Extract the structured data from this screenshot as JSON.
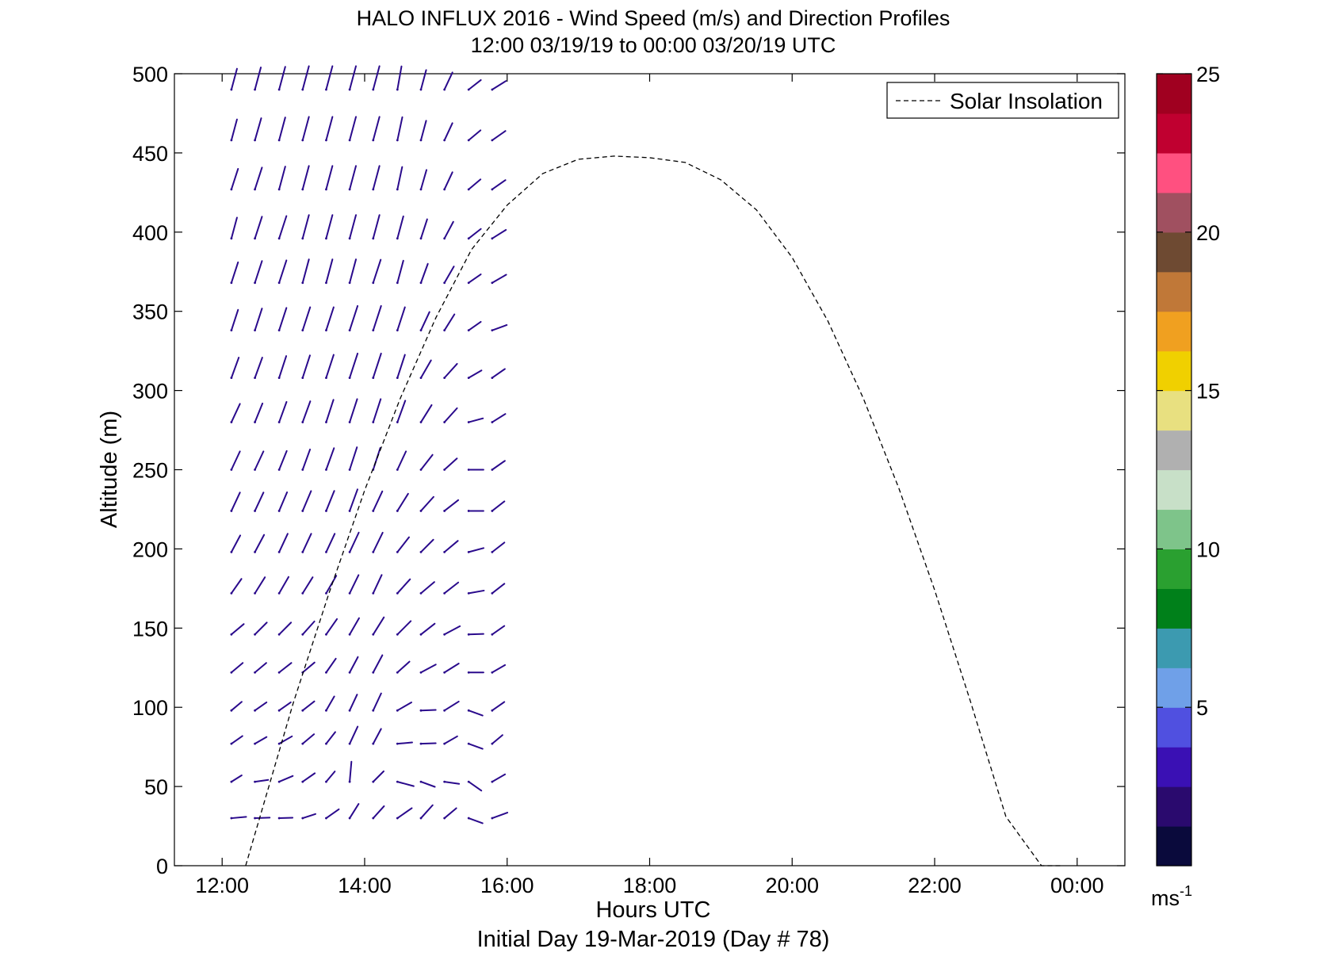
{
  "chart_data": {
    "type": "wind_barb_profile",
    "title": "HALO INFLUX 2016 - Wind Speed (m/s) and Direction Profiles",
    "subtitle": "12:00 03/19/19 to 00:00 03/20/19  UTC",
    "xlabel": "Hours UTC",
    "xlabel2": "Initial Day 19-Mar-2019 (Day # 78)",
    "ylabel": "Altitude (m)",
    "x_range_hours": [
      11.33,
      24.67
    ],
    "ylim": [
      0,
      500
    ],
    "x_ticks": [
      {
        "value": 12,
        "label": "12:00"
      },
      {
        "value": 14,
        "label": "14:00"
      },
      {
        "value": 16,
        "label": "16:00"
      },
      {
        "value": 18,
        "label": "18:00"
      },
      {
        "value": 20,
        "label": "20:00"
      },
      {
        "value": 22,
        "label": "22:00"
      },
      {
        "value": 24,
        "label": "00:00"
      }
    ],
    "y_ticks": [
      0,
      50,
      100,
      150,
      200,
      250,
      300,
      350,
      400,
      450,
      500
    ],
    "legend": {
      "label": "Solar Insolation",
      "position": "top-right",
      "line_style": "dashed",
      "color": "#000000"
    },
    "colorbar": {
      "min": 0,
      "max": 25,
      "ticks": [
        5,
        10,
        15,
        20,
        25
      ],
      "unit_label": "ms",
      "unit_exponent": "-1",
      "colors": [
        "#0a0a3c",
        "#2a0a6e",
        "#3a10b4",
        "#5050e0",
        "#6fa0e8",
        "#3c9ab0",
        "#00801a",
        "#2aa030",
        "#7ec48a",
        "#c8e0c8",
        "#b0b0b0",
        "#e8e080",
        "#f0d000",
        "#f0a020",
        "#c07838",
        "#6e4a32",
        "#a05060",
        "#ff5080",
        "#c00030",
        "#a00020"
      ]
    },
    "solar_insolation_curve": {
      "x_hours": [
        12.33,
        13.0,
        13.5,
        14.0,
        14.5,
        15.0,
        15.5,
        16.0,
        16.5,
        17.0,
        17.5,
        18.0,
        18.5,
        19.0,
        19.5,
        20.0,
        20.5,
        21.0,
        21.5,
        22.0,
        22.5,
        23.0,
        23.5,
        23.78
      ],
      "y_values": [
        0,
        103,
        172,
        237,
        295,
        346,
        389,
        417,
        437,
        446,
        448,
        447,
        444,
        433,
        414,
        384,
        344,
        295,
        238,
        174,
        104,
        31,
        0,
        0
      ]
    },
    "wind_vector_times": [
      11.79,
      12.13,
      12.46,
      12.8,
      13.13,
      13.46,
      13.79,
      14.12,
      14.46,
      14.79,
      15.12,
      15.46,
      15.79
    ],
    "wind_vector_altitudes": [
      30,
      53,
      77,
      98,
      122,
      146,
      172,
      198,
      224,
      250,
      280,
      308,
      338,
      368,
      396,
      427,
      458,
      490
    ],
    "wind_vector_rows": [
      {
        "altitude": 30,
        "color": "#2a0a8c",
        "angles_deg": [
          null,
          265,
          268,
          268,
          252,
          235,
          212,
          222,
          235,
          222,
          230,
          290,
          250
        ],
        "speeds": [
          null,
          2.2,
          2.2,
          2.0,
          2.0,
          2.3,
          2.5,
          2.4,
          2.6,
          2.6,
          2.3,
          2.2,
          2.4
        ]
      },
      {
        "altitude": 53,
        "color": "#2a0a8c",
        "angles_deg": [
          null,
          238,
          262,
          247,
          235,
          220,
          185,
          225,
          285,
          290,
          278,
          305,
          240
        ],
        "speeds": [
          null,
          1.8,
          2.0,
          2.2,
          2.2,
          2.0,
          3.0,
          2.2,
          2.5,
          2.2,
          2.2,
          2.3,
          2.2
        ]
      },
      {
        "altitude": 77,
        "color": "#2a0a8c",
        "angles_deg": [
          null,
          235,
          240,
          240,
          230,
          218,
          205,
          208,
          265,
          268,
          240,
          290,
          230
        ],
        "speeds": [
          null,
          2.0,
          2.0,
          2.2,
          2.2,
          2.2,
          2.8,
          2.5,
          2.2,
          2.2,
          2.2,
          2.2,
          2.0
        ]
      },
      {
        "altitude": 98,
        "color": "#2a0a8c",
        "angles_deg": [
          null,
          230,
          235,
          235,
          232,
          210,
          205,
          205,
          240,
          268,
          238,
          290,
          235
        ],
        "speeds": [
          null,
          2.0,
          2.1,
          2.1,
          2.2,
          2.4,
          2.6,
          2.8,
          2.4,
          2.2,
          2.5,
          2.2,
          2.2
        ]
      },
      {
        "altitude": 122,
        "color": "#2a0a8c",
        "angles_deg": [
          null,
          230,
          230,
          232,
          230,
          215,
          208,
          208,
          228,
          242,
          238,
          270,
          240
        ],
        "speeds": [
          null,
          2.2,
          2.2,
          2.3,
          2.3,
          2.5,
          2.6,
          2.9,
          2.4,
          2.5,
          2.5,
          2.2,
          2.2
        ]
      },
      {
        "altitude": 146,
        "color": "#2a0a8c",
        "angles_deg": [
          null,
          230,
          225,
          225,
          222,
          215,
          210,
          212,
          225,
          232,
          242,
          268,
          235
        ],
        "speeds": [
          null,
          2.4,
          2.5,
          2.5,
          2.6,
          2.8,
          2.8,
          3.0,
          2.8,
          2.6,
          2.6,
          2.2,
          2.2
        ]
      },
      {
        "altitude": 172,
        "color": "#2a0a8c",
        "angles_deg": [
          null,
          215,
          212,
          210,
          212,
          210,
          206,
          205,
          222,
          230,
          232,
          260,
          232
        ],
        "speeds": [
          null,
          2.6,
          2.8,
          2.8,
          2.8,
          3.0,
          3.0,
          3.0,
          2.8,
          2.6,
          2.6,
          2.3,
          2.3
        ]
      },
      {
        "altitude": 198,
        "color": "#2a0a8c",
        "angles_deg": [
          null,
          208,
          208,
          205,
          205,
          205,
          205,
          206,
          218,
          225,
          230,
          255,
          232
        ],
        "speeds": [
          null,
          2.8,
          2.9,
          3.0,
          3.0,
          3.0,
          3.2,
          3.2,
          2.8,
          2.6,
          2.6,
          2.3,
          2.3
        ]
      },
      {
        "altitude": 224,
        "color": "#2a0a8c",
        "angles_deg": [
          null,
          205,
          205,
          203,
          203,
          202,
          200,
          205,
          212,
          222,
          232,
          270,
          232
        ],
        "speeds": [
          null,
          3.0,
          3.0,
          3.0,
          3.2,
          3.2,
          3.4,
          3.2,
          3.0,
          2.8,
          2.6,
          2.2,
          2.3
        ]
      },
      {
        "altitude": 250,
        "color": "#2a0a8c",
        "angles_deg": [
          null,
          205,
          205,
          202,
          200,
          200,
          198,
          198,
          205,
          218,
          228,
          270,
          235
        ],
        "speeds": [
          null,
          3.0,
          3.0,
          3.0,
          3.2,
          3.4,
          3.5,
          3.4,
          3.0,
          2.8,
          2.5,
          2.2,
          2.3
        ]
      },
      {
        "altitude": 280,
        "color": "#2a0a8c",
        "angles_deg": [
          null,
          205,
          202,
          200,
          200,
          198,
          198,
          198,
          200,
          212,
          222,
          255,
          238
        ],
        "speeds": [
          null,
          3.0,
          3.0,
          3.2,
          3.3,
          3.5,
          3.6,
          3.6,
          3.4,
          3.0,
          2.8,
          2.2,
          2.3
        ]
      },
      {
        "altitude": 308,
        "color": "#2a0a8c",
        "angles_deg": [
          null,
          200,
          200,
          198,
          198,
          198,
          198,
          198,
          198,
          210,
          222,
          240,
          235
        ],
        "speeds": [
          null,
          3.2,
          3.2,
          3.4,
          3.5,
          3.6,
          3.8,
          3.8,
          3.6,
          3.0,
          2.8,
          2.2,
          2.3
        ]
      },
      {
        "altitude": 338,
        "color": "#2a0a8c",
        "angles_deg": [
          null,
          198,
          198,
          198,
          198,
          198,
          198,
          198,
          198,
          205,
          212,
          235,
          250
        ],
        "speeds": [
          null,
          3.2,
          3.4,
          3.5,
          3.6,
          3.6,
          3.8,
          3.8,
          3.6,
          3.0,
          2.8,
          2.2,
          2.3
        ]
      },
      {
        "altitude": 368,
        "color": "#2a0a8c",
        "angles_deg": [
          null,
          198,
          198,
          198,
          195,
          195,
          195,
          198,
          195,
          200,
          210,
          235,
          240
        ],
        "speeds": [
          null,
          3.2,
          3.4,
          3.5,
          3.6,
          3.6,
          3.6,
          3.6,
          3.4,
          3.0,
          2.8,
          2.2,
          2.4
        ]
      },
      {
        "altitude": 396,
        "color": "#2a0a8c",
        "angles_deg": [
          null,
          195,
          198,
          198,
          195,
          195,
          195,
          195,
          195,
          198,
          208,
          232,
          238
        ],
        "speeds": [
          null,
          3.2,
          3.4,
          3.5,
          3.6,
          3.6,
          3.6,
          3.6,
          3.4,
          3.0,
          2.8,
          2.3,
          2.4
        ]
      },
      {
        "altitude": 427,
        "color": "#2a0a8c",
        "angles_deg": [
          null,
          198,
          198,
          195,
          195,
          195,
          195,
          195,
          192,
          196,
          205,
          230,
          235
        ],
        "speeds": [
          null,
          3.2,
          3.4,
          3.5,
          3.6,
          3.6,
          3.6,
          3.6,
          3.4,
          3.0,
          2.8,
          2.3,
          2.4
        ]
      },
      {
        "altitude": 458,
        "color": "#2a0a8c",
        "angles_deg": [
          null,
          195,
          196,
          195,
          195,
          195,
          195,
          195,
          192,
          195,
          205,
          230,
          235
        ],
        "speeds": [
          null,
          3.2,
          3.4,
          3.5,
          3.6,
          3.6,
          3.6,
          3.6,
          3.5,
          3.0,
          2.8,
          2.3,
          2.4
        ]
      },
      {
        "altitude": 490,
        "color": "#2a0a8c",
        "angles_deg": [
          null,
          195,
          195,
          195,
          195,
          195,
          195,
          195,
          190,
          195,
          205,
          232,
          238
        ],
        "speeds": [
          null,
          3.2,
          3.4,
          3.5,
          3.6,
          3.6,
          3.6,
          3.6,
          3.5,
          3.0,
          2.8,
          2.3,
          2.4
        ]
      }
    ]
  }
}
